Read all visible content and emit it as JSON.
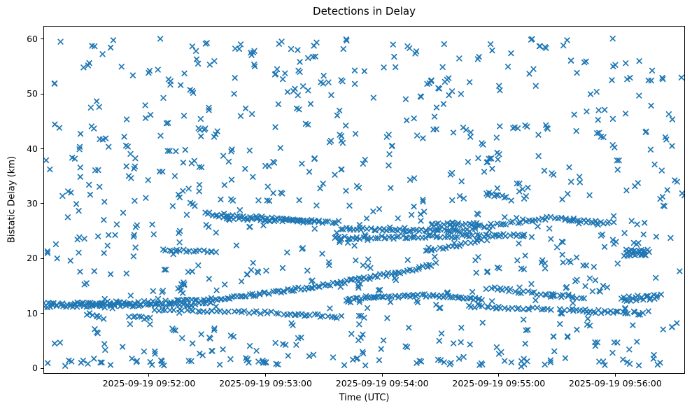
{
  "figure": {
    "title": "Detections in Delay",
    "xlabel": "Time (UTC)",
    "ylabel": "Bistatic Delay (km)"
  },
  "colors": {
    "marker": "#1f77b4",
    "axis": "#000000",
    "text": "#000000",
    "background": "#ffffff"
  },
  "chart_data": {
    "type": "scatter",
    "title": "Detections in Delay",
    "xlabel": "Time (UTC)",
    "ylabel": "Bistatic Delay (km)",
    "legend": null,
    "grid": false,
    "marker": {
      "glyph": "x",
      "color": "#1f77b4",
      "half_size_px": 3.3,
      "stroke_width_px": 1.7
    },
    "x_axis": {
      "unit": "seconds from left edge of plot",
      "domain": [
        0,
        329.5
      ],
      "ticks": [
        {
          "s": 54,
          "label": "2025-09-19 09:52:00"
        },
        {
          "s": 114,
          "label": "2025-09-19 09:53:00"
        },
        {
          "s": 174,
          "label": "2025-09-19 09:54:00"
        },
        {
          "s": 234,
          "label": "2025-09-19 09:55:00"
        },
        {
          "s": 294,
          "label": "2025-09-19 09:56:00"
        }
      ]
    },
    "y_axis": {
      "unit": "km",
      "domain": [
        -0.89,
        62.29
      ],
      "ticks": [
        {
          "v": 0,
          "label": "0"
        },
        {
          "v": 10,
          "label": "10"
        },
        {
          "v": 20,
          "label": "20"
        },
        {
          "v": 30,
          "label": "30"
        },
        {
          "v": 40,
          "label": "40"
        },
        {
          "v": 50,
          "label": "50"
        },
        {
          "v": 60,
          "label": "60"
        }
      ]
    },
    "tracks": [
      {
        "name": "track-main-rising",
        "points": [
          [
            0,
            11.75
          ],
          [
            32,
            11.9
          ],
          [
            60,
            12.0
          ],
          [
            86,
            12.55
          ],
          [
            114,
            13.6
          ],
          [
            139,
            14.85
          ],
          [
            165,
            16.35
          ],
          [
            184,
            17.6
          ],
          [
            200,
            18.85
          ]
        ],
        "spacing_s": 1.3,
        "jitter_km": 0.28,
        "jitter_s": 0.6
      },
      {
        "name": "track-left-lower-thread",
        "points": [
          [
            0,
            11.3
          ],
          [
            40,
            11.45
          ],
          [
            70,
            11.6
          ],
          [
            88,
            11.95
          ]
        ],
        "spacing_s": 1.7,
        "jitter_km": 0.2,
        "jitter_s": 0.6
      },
      {
        "name": "track-left-10km-band",
        "points": [
          [
            57,
            10.65
          ],
          [
            86,
            10.35
          ],
          [
            113,
            10.15
          ],
          [
            134,
            9.75
          ],
          [
            152,
            9.4
          ]
        ],
        "spacing_s": 1.9,
        "jitter_km": 0.25,
        "jitter_s": 0.7
      },
      {
        "name": "clump-9km-left",
        "points": [
          [
            44,
            9.35
          ],
          [
            55,
            9.1
          ]
        ],
        "spacing_s": 1.3,
        "jitter_km": 0.3,
        "jitter_s": 0.5
      },
      {
        "name": "clump-9km-far-left",
        "points": [
          [
            22,
            9.6
          ],
          [
            32,
            9.1
          ]
        ],
        "spacing_s": 1.6,
        "jitter_km": 0.5,
        "jitter_s": 0.6
      },
      {
        "name": "track-upper-descending",
        "points": [
          [
            83,
            28.2
          ],
          [
            104,
            27.55
          ],
          [
            129,
            27.0
          ],
          [
            153,
            26.6
          ]
        ],
        "spacing_s": 1.4,
        "jitter_km": 0.3,
        "jitter_s": 0.6
      },
      {
        "name": "track-upper-descending-b",
        "points": [
          [
            90,
            27.5
          ],
          [
            115,
            27.05
          ],
          [
            141,
            26.65
          ]
        ],
        "spacing_s": 2.0,
        "jitter_km": 0.22,
        "jitter_s": 0.6
      },
      {
        "name": "track-24km-band",
        "points": [
          [
            150,
            23.7
          ],
          [
            175,
            23.9
          ],
          [
            211,
            24.1
          ],
          [
            248,
            24.25
          ]
        ],
        "spacing_s": 1.5,
        "jitter_km": 0.27,
        "jitter_s": 0.6
      },
      {
        "name": "track-25km-band",
        "points": [
          [
            153,
            25.5
          ],
          [
            180,
            25.2
          ],
          [
            222,
            25.15
          ]
        ],
        "spacing_s": 1.4,
        "jitter_km": 0.27,
        "jitter_s": 0.6
      },
      {
        "name": "segment-26km-mid",
        "points": [
          [
            200,
            26.2
          ],
          [
            224,
            26.35
          ]
        ],
        "spacing_s": 1.5,
        "jitter_km": 0.25,
        "jitter_s": 0.6
      },
      {
        "name": "thread-rising-21-23",
        "points": [
          [
            196,
            21.3
          ],
          [
            211,
            22.3
          ],
          [
            229,
            23.5
          ]
        ],
        "spacing_s": 1.9,
        "jitter_km": 0.25,
        "jitter_s": 0.6
      },
      {
        "name": "track-mid-13km-band",
        "points": [
          [
            155,
            12.4
          ],
          [
            170,
            12.9
          ],
          [
            193,
            13.3
          ],
          [
            211,
            13.05
          ],
          [
            226,
            12.5
          ]
        ],
        "spacing_s": 1.2,
        "jitter_km": 0.25,
        "jitter_s": 0.6
      },
      {
        "name": "track-right-hump-27km",
        "points": [
          [
            222,
            25.7
          ],
          [
            237,
            26.4
          ],
          [
            251,
            27.1
          ],
          [
            262,
            27.45
          ],
          [
            276,
            26.85
          ],
          [
            293,
            26.45
          ]
        ],
        "spacing_s": 1.5,
        "jitter_km": 0.28,
        "jitter_s": 0.6
      },
      {
        "name": "track-right-descending",
        "points": [
          [
            228,
            14.65
          ],
          [
            244,
            14.0
          ],
          [
            265,
            13.2
          ],
          [
            279,
            12.7
          ]
        ],
        "spacing_s": 1.6,
        "jitter_km": 0.26,
        "jitter_s": 0.6
      },
      {
        "name": "blob-right-12km",
        "points": [
          [
            297,
            12.55
          ],
          [
            306,
            12.85
          ],
          [
            317,
            13.0
          ]
        ],
        "spacing_s": 0.9,
        "jitter_km": 0.5,
        "jitter_s": 0.7
      },
      {
        "name": "track-right-11km",
        "points": [
          [
            218,
            11.2
          ],
          [
            240,
            11.0
          ],
          [
            261,
            10.8
          ]
        ],
        "spacing_s": 1.8,
        "jitter_km": 0.24,
        "jitter_s": 0.7
      },
      {
        "name": "track-right-10km",
        "points": [
          [
            266,
            10.7
          ],
          [
            287,
            10.3
          ],
          [
            308,
            10.0
          ]
        ],
        "spacing_s": 1.5,
        "jitter_km": 0.27,
        "jitter_s": 0.7
      },
      {
        "name": "segment-21km-right-a",
        "points": [
          [
            300,
            21.6
          ],
          [
            312,
            21.3
          ]
        ],
        "spacing_s": 1.1,
        "jitter_km": 0.28,
        "jitter_s": 0.5
      },
      {
        "name": "segment-21km-right-b",
        "points": [
          [
            299,
            20.7
          ],
          [
            311,
            20.55
          ]
        ],
        "spacing_s": 1.4,
        "jitter_km": 0.22,
        "jitter_s": 0.5
      },
      {
        "name": "clump-21km-left",
        "points": [
          [
            61,
            21.5
          ],
          [
            76,
            21.4
          ],
          [
            88,
            21.3
          ]
        ],
        "spacing_s": 1.6,
        "jitter_km": 0.27,
        "jitter_s": 0.6
      },
      {
        "name": "segment-31km",
        "points": [
          [
            228,
            31.8
          ],
          [
            239,
            31.3
          ]
        ],
        "spacing_s": 1.3,
        "jitter_km": 0.3,
        "jitter_s": 0.5
      }
    ],
    "clutter": {
      "count": 680,
      "seed": 1337,
      "x_range": [
        1,
        328.5
      ],
      "y_range": [
        2.2,
        60.3
      ],
      "low_fraction": 0.08,
      "low_y_range": [
        0.4,
        2.2
      ],
      "twin_fraction": 0.22,
      "twin_dx_s": 1.6,
      "twin_dy_km": 0.45
    }
  }
}
